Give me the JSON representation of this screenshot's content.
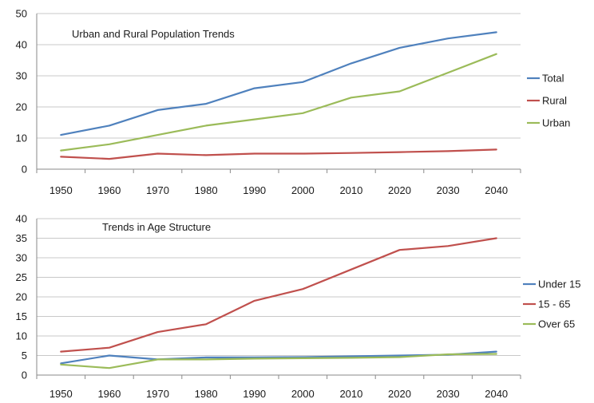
{
  "chart_data": [
    {
      "type": "line",
      "title": "Urban and Rural Population Trends",
      "x": [
        1950,
        1960,
        1970,
        1980,
        1990,
        2000,
        2010,
        2020,
        2030,
        2040
      ],
      "ylim": [
        0,
        50
      ],
      "yticks": [
        0,
        10,
        20,
        30,
        40,
        50
      ],
      "grid": true,
      "legend_position": "right",
      "series": [
        {
          "name": "Total",
          "color": "#4f81bd",
          "values": [
            11,
            14,
            19,
            21,
            26,
            28,
            34,
            39,
            42,
            44
          ]
        },
        {
          "name": "Rural",
          "color": "#c0504d",
          "values": [
            4,
            3.3,
            5,
            4.5,
            5,
            5,
            5.2,
            5.5,
            5.8,
            6.3
          ]
        },
        {
          "name": "Urban",
          "color": "#9bbb59",
          "values": [
            6,
            8,
            11,
            14,
            16,
            18,
            23,
            25,
            31,
            37
          ]
        }
      ]
    },
    {
      "type": "line",
      "title": "Trends in Age Structure",
      "x": [
        1950,
        1960,
        1970,
        1980,
        1990,
        2000,
        2010,
        2020,
        2030,
        2040
      ],
      "ylim": [
        0,
        40
      ],
      "yticks": [
        0,
        5,
        10,
        15,
        20,
        25,
        30,
        35,
        40
      ],
      "grid": true,
      "legend_position": "right",
      "series": [
        {
          "name": "Under 15",
          "color": "#4f81bd",
          "values": [
            3,
            5,
            4,
            4.5,
            4.5,
            4.6,
            4.8,
            5,
            5.2,
            6
          ]
        },
        {
          "name": "15 - 65",
          "color": "#c0504d",
          "values": [
            6,
            7,
            11,
            13,
            19,
            22,
            27,
            32,
            33,
            35
          ]
        },
        {
          "name": "Over 65",
          "color": "#9bbb59",
          "values": [
            2.7,
            1.8,
            4,
            4,
            4.2,
            4.3,
            4.4,
            4.6,
            5.3,
            5.4
          ]
        }
      ]
    }
  ]
}
